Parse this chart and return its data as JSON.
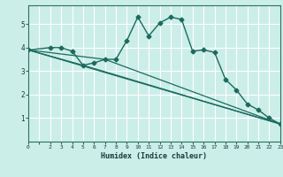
{
  "xlabel": "Humidex (Indice chaleur)",
  "background_color": "#cceee8",
  "grid_color": "#ffffff",
  "line_color": "#1a6b5e",
  "xlim": [
    0,
    23
  ],
  "ylim": [
    0,
    5.8
  ],
  "yticks": [
    1,
    2,
    3,
    4,
    5
  ],
  "xtick_positions": [
    0,
    1,
    2,
    3,
    4,
    5,
    6,
    7,
    8,
    9,
    10,
    11,
    12,
    13,
    14,
    15,
    16,
    17,
    18,
    19,
    20,
    21,
    22,
    23
  ],
  "xtick_labels": [
    "0",
    "",
    "2",
    "3",
    "4",
    "5",
    "6",
    "7",
    "8",
    "9",
    "10",
    "11",
    "12",
    "13",
    "14",
    "15",
    "16",
    "17",
    "18",
    "19",
    "20",
    "21",
    "22",
    "23"
  ],
  "series": [
    {
      "x": [
        0,
        2,
        3,
        4,
        5,
        6,
        7,
        8,
        9,
        10,
        11,
        12,
        13,
        14,
        15,
        16,
        17,
        18,
        19,
        20,
        21,
        22,
        23
      ],
      "y": [
        3.9,
        4.0,
        4.0,
        3.85,
        3.25,
        3.35,
        3.5,
        3.5,
        4.3,
        5.3,
        4.5,
        5.05,
        5.3,
        5.2,
        3.85,
        3.9,
        3.8,
        2.65,
        2.2,
        1.6,
        1.35,
        1.0,
        0.75
      ],
      "marker": "D",
      "markersize": 2.5,
      "linewidth": 1.0,
      "zorder": 3
    },
    {
      "x": [
        0,
        23
      ],
      "y": [
        3.9,
        0.75
      ],
      "marker": null,
      "linewidth": 0.9,
      "zorder": 2
    },
    {
      "x": [
        0,
        7,
        23
      ],
      "y": [
        3.9,
        3.5,
        0.75
      ],
      "marker": null,
      "linewidth": 0.9,
      "zorder": 2
    },
    {
      "x": [
        0,
        5,
        23
      ],
      "y": [
        3.9,
        3.25,
        0.75
      ],
      "marker": null,
      "linewidth": 0.9,
      "zorder": 2
    }
  ]
}
